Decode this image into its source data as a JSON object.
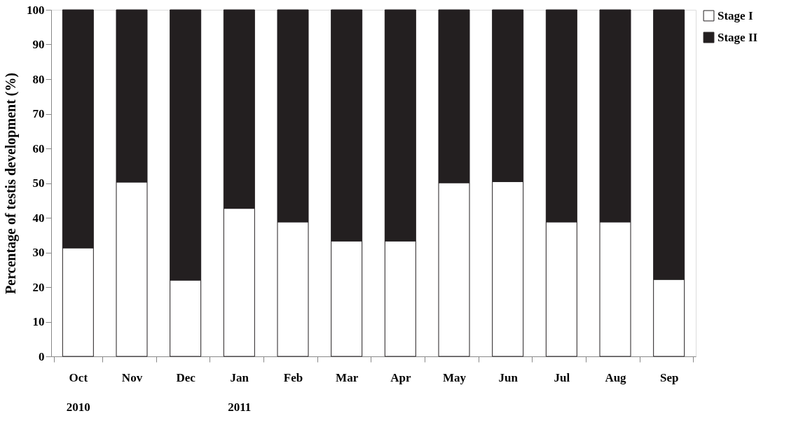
{
  "chart_data": {
    "type": "bar",
    "stacked": true,
    "ylabel": "Percentage of testis development (%)",
    "categories": [
      "Oct 2010",
      "Nov",
      "Dec",
      "Jan 2011",
      "Feb",
      "Mar",
      "Apr",
      "May",
      "Jun",
      "Jul",
      "Aug",
      "Sep"
    ],
    "series": [
      {
        "name": "Stage I",
        "color": "#ffffff",
        "values": [
          31.3,
          50.3,
          22.0,
          42.7,
          38.8,
          33.3,
          33.3,
          50.1,
          50.4,
          38.8,
          38.8,
          22.2
        ]
      },
      {
        "name": "Stage II",
        "color": "#231f20",
        "values": [
          68.7,
          49.7,
          78.0,
          57.3,
          61.2,
          66.7,
          66.7,
          49.9,
          49.6,
          61.2,
          61.2,
          77.8
        ]
      }
    ],
    "ylim": [
      0,
      100
    ],
    "yticks": [
      0,
      10,
      20,
      30,
      40,
      50,
      60,
      70,
      80,
      90,
      100
    ],
    "grid": false,
    "legend": "right"
  }
}
